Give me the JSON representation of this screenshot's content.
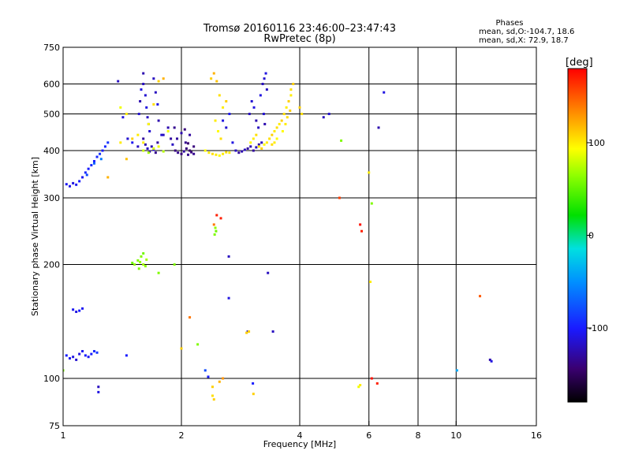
{
  "chart_data": {
    "type": "scatter",
    "title": "Tromsø 20160116 23:46:00–23:47:43",
    "subtitle": "RwPretec (8p)",
    "xlabel": "Frequency [MHz]",
    "ylabel": "Stationary phase Virtual Height [km]",
    "x_scale": "log",
    "y_scale": "log",
    "xlim": [
      1,
      16
    ],
    "ylim": [
      75,
      750
    ],
    "x_ticks": [
      1,
      2,
      4,
      6,
      8,
      10,
      16
    ],
    "x_tick_labels": [
      "1",
      "2",
      "4",
      "6",
      "8",
      "10",
      "16"
    ],
    "x_grid": [
      2,
      4,
      6,
      8,
      10
    ],
    "y_ticks": [
      75,
      100,
      200,
      300,
      400,
      500,
      600,
      750
    ],
    "y_tick_labels": [
      "75",
      "100",
      "200",
      "300",
      "400",
      "500",
      "600",
      "750"
    ],
    "y_grid": [
      100,
      200,
      300,
      400,
      500,
      600
    ],
    "grid": true,
    "stats": {
      "heading": "Phases",
      "line1": "mean, sd,O:-104.7, 18.6",
      "line2": "mean, sd,X:  72.9, 18.7"
    },
    "colorbar": {
      "label": "[deg]",
      "range": [
        -180,
        180
      ],
      "ticks": [
        100,
        0,
        -100
      ],
      "tick_labels": [
        "100",
        "0",
        "-100"
      ]
    },
    "series": [
      {
        "points": [
          [
            1.02,
            326,
            -105
          ],
          [
            1.04,
            322,
            -108
          ],
          [
            1.06,
            328,
            -110
          ],
          [
            1.08,
            325,
            -105
          ],
          [
            1.1,
            332,
            -100
          ],
          [
            1.12,
            340,
            -105
          ],
          [
            1.14,
            350,
            -95
          ],
          [
            1.16,
            358,
            -100
          ],
          [
            1.18,
            366,
            -95
          ],
          [
            1.2,
            375,
            -100
          ],
          [
            1.22,
            385,
            -95
          ],
          [
            1.24,
            392,
            -90
          ],
          [
            1.26,
            400,
            -100
          ],
          [
            1.28,
            410,
            -95
          ],
          [
            1.3,
            420,
            -90
          ],
          [
            1.15,
            345,
            -80
          ],
          [
            1.2,
            370,
            -70
          ],
          [
            1.25,
            380,
            -60
          ],
          [
            1.38,
            610,
            -120
          ],
          [
            1.42,
            490,
            -110
          ],
          [
            1.46,
            430,
            -115
          ],
          [
            1.5,
            420,
            -105
          ],
          [
            1.55,
            410,
            -120
          ],
          [
            1.6,
            640,
            -125
          ],
          [
            1.6,
            600,
            -120
          ],
          [
            1.62,
            560,
            -115
          ],
          [
            1.63,
            520,
            -110
          ],
          [
            1.64,
            490,
            -120
          ],
          [
            1.65,
            470,
            -130
          ],
          [
            1.66,
            450,
            -115
          ],
          [
            1.58,
            580,
            -110
          ],
          [
            1.57,
            540,
            -125
          ],
          [
            1.56,
            500,
            -115
          ],
          [
            1.7,
            620,
            -120
          ],
          [
            1.72,
            570,
            -120
          ],
          [
            1.74,
            530,
            -110
          ],
          [
            1.75,
            480,
            -125
          ],
          [
            1.78,
            440,
            -115
          ],
          [
            1.6,
            430,
            -130
          ],
          [
            1.62,
            415,
            -125
          ],
          [
            1.64,
            405,
            -120
          ],
          [
            1.66,
            398,
            -130
          ],
          [
            1.68,
            410,
            -125
          ],
          [
            1.7,
            402,
            -120
          ],
          [
            1.72,
            395,
            -135
          ],
          [
            1.74,
            420,
            -130
          ],
          [
            1.8,
            440,
            -120
          ],
          [
            1.85,
            460,
            -125
          ],
          [
            1.88,
            430,
            -130
          ],
          [
            1.9,
            415,
            -120
          ],
          [
            1.93,
            400,
            -140
          ],
          [
            1.96,
            395,
            -135
          ],
          [
            2.0,
            392,
            -140
          ],
          [
            2.03,
            398,
            -130
          ],
          [
            2.06,
            405,
            -140
          ],
          [
            2.08,
            390,
            -135
          ],
          [
            2.1,
            400,
            -145
          ],
          [
            2.12,
            396,
            -140
          ],
          [
            2.15,
            392,
            -135
          ],
          [
            1.95,
            430,
            -130
          ],
          [
            2.0,
            445,
            -125
          ],
          [
            2.05,
            420,
            -135
          ],
          [
            2.1,
            440,
            -130
          ],
          [
            2.15,
            410,
            -140
          ],
          [
            1.92,
            460,
            -135
          ],
          [
            2.04,
            455,
            -140
          ],
          [
            2.08,
            418,
            -145
          ],
          [
            2.55,
            480,
            -110
          ],
          [
            2.6,
            460,
            -115
          ],
          [
            2.65,
            500,
            -105
          ],
          [
            2.7,
            420,
            -110
          ],
          [
            2.75,
            400,
            -120
          ],
          [
            2.8,
            395,
            -130
          ],
          [
            2.85,
            398,
            -125
          ],
          [
            2.9,
            402,
            -120
          ],
          [
            2.95,
            405,
            -130
          ],
          [
            3.0,
            410,
            -125
          ],
          [
            3.05,
            400,
            -130
          ],
          [
            3.1,
            408,
            -120
          ],
          [
            3.15,
            415,
            -125
          ],
          [
            3.2,
            420,
            -120
          ],
          [
            2.98,
            500,
            -120
          ],
          [
            3.02,
            540,
            -115
          ],
          [
            3.06,
            520,
            -110
          ],
          [
            3.1,
            480,
            -125
          ],
          [
            3.14,
            460,
            -120
          ],
          [
            3.18,
            560,
            -110
          ],
          [
            3.22,
            600,
            -120
          ],
          [
            3.25,
            620,
            -115
          ],
          [
            3.28,
            640,
            -110
          ],
          [
            3.3,
            580,
            -120
          ],
          [
            3.24,
            500,
            -115
          ],
          [
            3.26,
            470,
            -125
          ],
          [
            1.06,
            152,
            -105
          ],
          [
            1.08,
            150,
            -110
          ],
          [
            1.1,
            151,
            -100
          ],
          [
            1.12,
            153,
            -105
          ],
          [
            1.02,
            115,
            -100
          ],
          [
            1.04,
            113,
            -105
          ],
          [
            1.06,
            114,
            -110
          ],
          [
            1.08,
            112,
            -115
          ],
          [
            1.1,
            116,
            -110
          ],
          [
            1.12,
            118,
            -105
          ],
          [
            1.14,
            115,
            -100
          ],
          [
            1.16,
            114,
            -105
          ],
          [
            1.18,
            116,
            -100
          ],
          [
            1.2,
            118,
            -95
          ],
          [
            1.22,
            117,
            -90
          ],
          [
            1.23,
            92,
            -110
          ],
          [
            1.23,
            95,
            -120
          ],
          [
            1.45,
            115,
            -100
          ],
          [
            2.64,
            163,
            -110
          ],
          [
            2.64,
            210,
            -120
          ],
          [
            2.95,
            133,
            -110
          ],
          [
            3.42,
            133,
            -120
          ],
          [
            3.32,
            190,
            -120
          ],
          [
            2.34,
            101,
            -100
          ],
          [
            2.3,
            105,
            -80
          ],
          [
            3.04,
            97,
            -100
          ],
          [
            4.75,
            500,
            -115
          ],
          [
            4.6,
            490,
            -120
          ],
          [
            6.55,
            570,
            -110
          ],
          [
            6.35,
            460,
            -125
          ],
          [
            12.2,
            112,
            -125
          ],
          [
            12.3,
            111,
            -110
          ],
          [
            10.05,
            105,
            -40
          ]
        ]
      },
      {
        "points": [
          [
            1.4,
            520,
            90
          ],
          [
            1.45,
            500,
            100
          ],
          [
            1.6,
            400,
            80
          ],
          [
            1.65,
            395,
            70
          ],
          [
            1.7,
            405,
            85
          ],
          [
            1.75,
            410,
            90
          ],
          [
            1.8,
            398,
            75
          ],
          [
            1.6,
            420,
            100
          ],
          [
            1.65,
            470,
            95
          ],
          [
            1.7,
            530,
            105
          ],
          [
            1.75,
            610,
            110
          ],
          [
            1.8,
            620,
            120
          ],
          [
            1.85,
            450,
            90
          ],
          [
            1.55,
            440,
            100
          ],
          [
            1.5,
            430,
            110
          ],
          [
            1.45,
            380,
            115
          ],
          [
            1.4,
            420,
            100
          ],
          [
            2.3,
            400,
            95
          ],
          [
            2.35,
            395,
            100
          ],
          [
            2.4,
            392,
            105
          ],
          [
            2.45,
            390,
            100
          ],
          [
            2.5,
            388,
            95
          ],
          [
            2.55,
            392,
            100
          ],
          [
            2.6,
            396,
            105
          ],
          [
            2.65,
            395,
            100
          ],
          [
            2.38,
            620,
            110
          ],
          [
            2.42,
            640,
            120
          ],
          [
            2.46,
            610,
            115
          ],
          [
            2.5,
            560,
            105
          ],
          [
            2.55,
            520,
            100
          ],
          [
            2.6,
            540,
            110
          ],
          [
            2.44,
            480,
            100
          ],
          [
            2.48,
            450,
            95
          ],
          [
            2.52,
            430,
            105
          ],
          [
            3.0,
            420,
            95
          ],
          [
            3.05,
            430,
            100
          ],
          [
            3.1,
            440,
            105
          ],
          [
            3.15,
            410,
            100
          ],
          [
            3.2,
            405,
            110
          ],
          [
            3.25,
            415,
            95
          ],
          [
            3.3,
            420,
            100
          ],
          [
            3.35,
            430,
            105
          ],
          [
            3.4,
            440,
            110
          ],
          [
            3.45,
            450,
            100
          ],
          [
            3.5,
            460,
            105
          ],
          [
            3.55,
            470,
            100
          ],
          [
            3.6,
            480,
            110
          ],
          [
            3.65,
            500,
            105
          ],
          [
            3.7,
            520,
            100
          ],
          [
            3.75,
            540,
            110
          ],
          [
            3.8,
            560,
            100
          ],
          [
            3.62,
            450,
            95
          ],
          [
            3.68,
            470,
            100
          ],
          [
            3.72,
            490,
            105
          ],
          [
            3.78,
            510,
            110
          ],
          [
            3.5,
            430,
            95
          ],
          [
            3.45,
            420,
            100
          ],
          [
            3.4,
            415,
            105
          ],
          [
            3.85,
            600,
            110
          ],
          [
            3.8,
            580,
            105
          ],
          [
            1.55,
            205,
            60
          ],
          [
            1.57,
            203,
            65
          ],
          [
            1.6,
            200,
            70
          ],
          [
            1.62,
            198,
            65
          ],
          [
            1.58,
            210,
            60
          ],
          [
            1.6,
            214,
            55
          ],
          [
            1.56,
            195,
            60
          ],
          [
            1.63,
            206,
            70
          ],
          [
            1.75,
            190,
            60
          ],
          [
            1.52,
            200,
            65
          ],
          [
            1.5,
            202,
            55
          ],
          [
            2.43,
            240,
            60
          ],
          [
            2.45,
            245,
            55
          ],
          [
            2.44,
            250,
            65
          ],
          [
            2.42,
            255,
            140
          ],
          [
            2.1,
            145,
            140
          ],
          [
            2.0,
            120,
            110
          ],
          [
            2.2,
            123,
            60
          ],
          [
            2.46,
            270,
            170
          ],
          [
            2.52,
            265,
            170
          ],
          [
            2.4,
            95,
            110
          ],
          [
            2.4,
            90,
            105
          ],
          [
            2.42,
            88,
            110
          ],
          [
            2.5,
            98,
            120
          ],
          [
            2.55,
            100,
            130
          ],
          [
            2.93,
            132,
            110
          ],
          [
            2.97,
            133,
            110
          ],
          [
            3.05,
            91,
            110
          ],
          [
            4.0,
            520,
            110
          ],
          [
            4.05,
            500,
            105
          ],
          [
            5.05,
            300,
            160
          ],
          [
            5.1,
            425,
            60
          ],
          [
            5.65,
            95,
            90
          ],
          [
            5.7,
            96,
            100
          ],
          [
            6.0,
            350,
            100
          ],
          [
            6.1,
            290,
            60
          ],
          [
            6.05,
            180,
            100
          ],
          [
            5.7,
            255,
            175
          ],
          [
            5.75,
            245,
            170
          ],
          [
            6.1,
            100,
            175
          ],
          [
            6.3,
            97,
            170
          ],
          [
            11.5,
            165,
            150
          ],
          [
            1.0,
            105,
            60
          ],
          [
            1.3,
            340,
            120
          ],
          [
            1.92,
            200,
            60
          ]
        ]
      }
    ]
  }
}
